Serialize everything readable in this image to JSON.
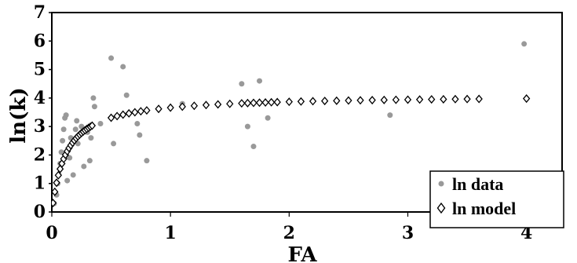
{
  "chart_data": {
    "type": "scatter",
    "xlabel": "FA",
    "ylabel": "ln(k)",
    "xlim": [
      0,
      4.3
    ],
    "ylim": [
      0,
      7
    ],
    "x_ticks": [
      "0",
      "1",
      "2",
      "3",
      "4"
    ],
    "y_ticks": [
      "0",
      "1",
      "2",
      "3",
      "4",
      "5",
      "6",
      "7"
    ],
    "grid": false,
    "legend_position": "bottom-right",
    "series": [
      {
        "name": "ln data",
        "marker": "circle",
        "color": "#999999",
        "points": [
          [
            0.02,
            0.3
          ],
          [
            0.04,
            0.6
          ],
          [
            0.05,
            1.0
          ],
          [
            0.06,
            1.3
          ],
          [
            0.07,
            1.7
          ],
          [
            0.08,
            2.1
          ],
          [
            0.09,
            2.5
          ],
          [
            0.1,
            2.9
          ],
          [
            0.11,
            3.3
          ],
          [
            0.12,
            3.4
          ],
          [
            0.13,
            1.1
          ],
          [
            0.14,
            2.2
          ],
          [
            0.15,
            1.9
          ],
          [
            0.16,
            2.6
          ],
          [
            0.18,
            1.3
          ],
          [
            0.2,
            2.9
          ],
          [
            0.21,
            3.2
          ],
          [
            0.22,
            2.4
          ],
          [
            0.25,
            3.0
          ],
          [
            0.27,
            1.6
          ],
          [
            0.3,
            2.8
          ],
          [
            0.32,
            1.8
          ],
          [
            0.33,
            2.6
          ],
          [
            0.35,
            4.0
          ],
          [
            0.36,
            3.7
          ],
          [
            0.41,
            3.1
          ],
          [
            0.5,
            5.4
          ],
          [
            0.52,
            2.4
          ],
          [
            0.6,
            5.1
          ],
          [
            0.63,
            4.1
          ],
          [
            0.72,
            3.1
          ],
          [
            0.74,
            2.7
          ],
          [
            0.8,
            1.8
          ],
          [
            1.1,
            3.8
          ],
          [
            1.6,
            4.5
          ],
          [
            1.65,
            3.0
          ],
          [
            1.7,
            2.3
          ],
          [
            1.75,
            4.6
          ],
          [
            1.82,
            3.3
          ],
          [
            2.85,
            3.4
          ],
          [
            3.98,
            5.9
          ]
        ]
      },
      {
        "name": "ln model",
        "marker": "diamond",
        "color": "#000000",
        "model": {
          "ymax": 4.1,
          "k": 0.12
        },
        "x": [
          0.01,
          0.025,
          0.04,
          0.055,
          0.07,
          0.085,
          0.1,
          0.115,
          0.13,
          0.145,
          0.16,
          0.175,
          0.19,
          0.205,
          0.22,
          0.235,
          0.25,
          0.265,
          0.28,
          0.295,
          0.31,
          0.325,
          0.34,
          0.5,
          0.55,
          0.6,
          0.65,
          0.7,
          0.75,
          0.8,
          0.9,
          1.0,
          1.1,
          1.2,
          1.3,
          1.4,
          1.5,
          1.6,
          1.65,
          1.7,
          1.75,
          1.8,
          1.85,
          1.9,
          2.0,
          2.1,
          2.2,
          2.3,
          2.4,
          2.5,
          2.6,
          2.7,
          2.8,
          2.9,
          3.0,
          3.1,
          3.2,
          3.3,
          3.4,
          3.5,
          3.6,
          4.0
        ]
      }
    ]
  }
}
